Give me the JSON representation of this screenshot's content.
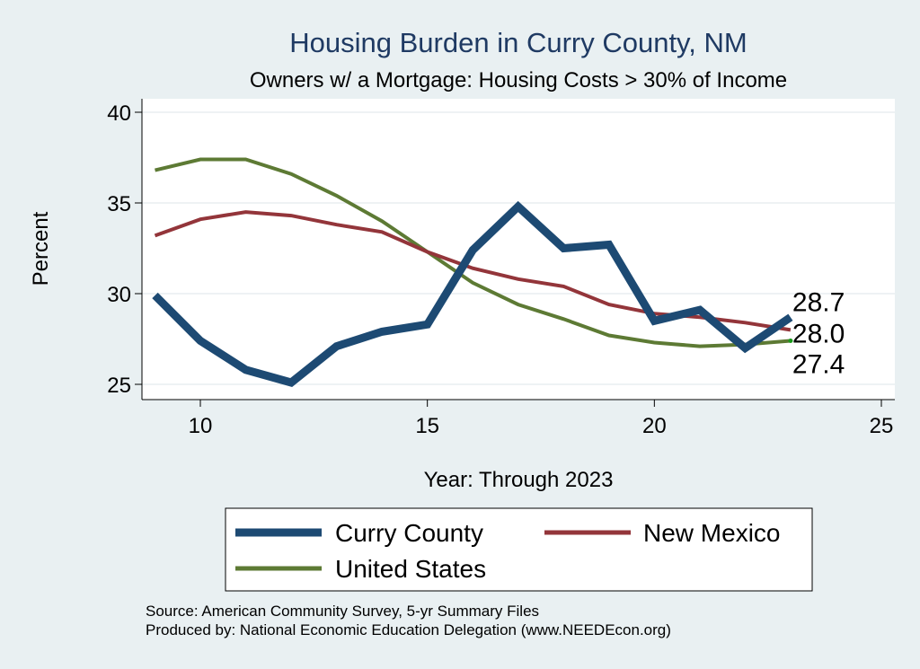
{
  "chart_data": {
    "type": "line",
    "title": "Housing Burden in Curry County, NM",
    "subtitle": "Owners w/ a Mortgage: Housing Costs > 30% of Income",
    "xlabel": "Year: Through 2023",
    "ylabel": "Percent",
    "xlim": [
      9,
      25
    ],
    "ylim": [
      25,
      40
    ],
    "x_ticks": [
      10,
      15,
      20,
      25
    ],
    "y_ticks": [
      25,
      30,
      35,
      40
    ],
    "grid": true,
    "x": [
      9,
      10,
      11,
      12,
      13,
      14,
      15,
      16,
      17,
      18,
      19,
      20,
      21,
      22,
      23
    ],
    "series": [
      {
        "name": "Curry County",
        "color": "#1d4a73",
        "values": [
          29.9,
          27.4,
          25.8,
          25.1,
          27.1,
          27.9,
          28.3,
          32.4,
          34.8,
          32.5,
          32.7,
          28.5,
          29.1,
          27.0,
          28.7
        ],
        "end_label": "28.7"
      },
      {
        "name": "New Mexico",
        "color": "#93353a",
        "values": [
          33.2,
          34.1,
          34.5,
          34.3,
          33.8,
          33.4,
          32.3,
          31.4,
          30.8,
          30.4,
          29.4,
          28.9,
          28.7,
          28.4,
          28.0
        ],
        "end_label": "28.0"
      },
      {
        "name": "United States",
        "color": "#5d7a34",
        "values": [
          36.8,
          37.4,
          37.4,
          36.6,
          35.4,
          34.0,
          32.3,
          30.6,
          29.4,
          28.6,
          27.7,
          27.3,
          27.1,
          27.2,
          27.4
        ],
        "end_label": "27.4"
      }
    ],
    "legend": {
      "position": "bottom",
      "items": [
        "Curry County",
        "New Mexico",
        "United States"
      ]
    }
  },
  "source_lines": [
    "Source: American Community Survey, 5-yr Summary Files",
    "Produced by: National Economic Education Delegation (www.NEEDEcon.org)"
  ]
}
